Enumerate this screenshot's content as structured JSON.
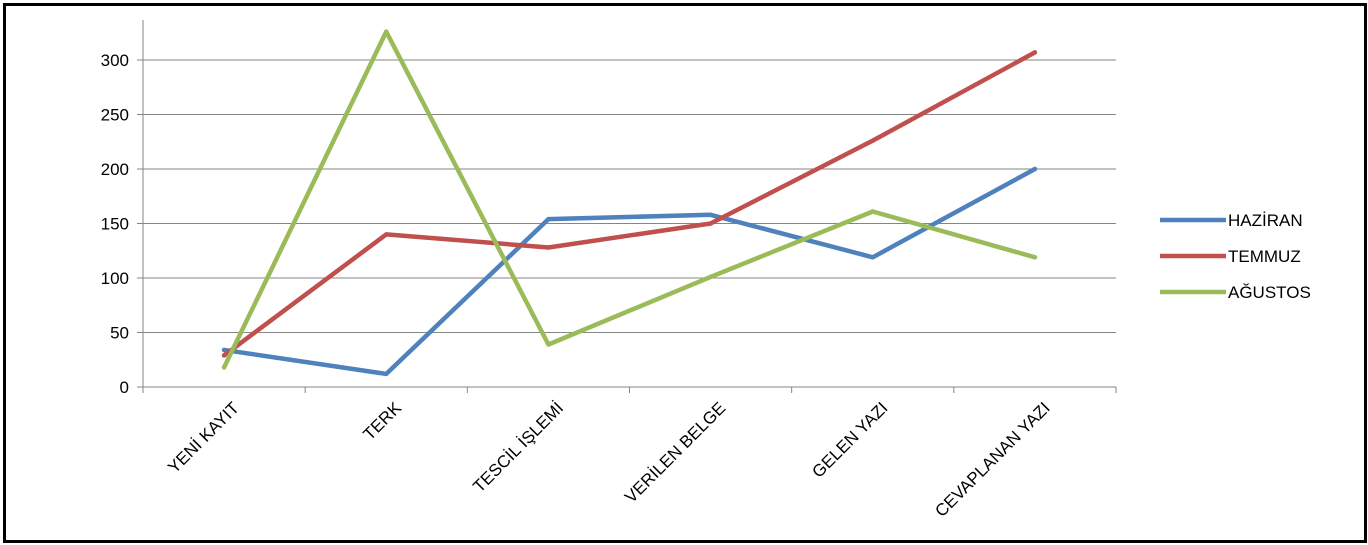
{
  "chart_data": {
    "type": "line",
    "title": "",
    "xlabel": "",
    "ylabel": "",
    "categories": [
      "YENİ KAYIT",
      "TERK",
      "TESCİL İŞLEMİ",
      "VERİLEN BELGE",
      "GELEN YAZI",
      "CEVAPLANAN YAZI"
    ],
    "ylim": [
      0,
      300
    ],
    "yticks": [
      0,
      50,
      100,
      150,
      200,
      250,
      300
    ],
    "grid": true,
    "legend_position": "right",
    "series": [
      {
        "name": "HAZİRAN",
        "color": "#4F81BD",
        "values": [
          34,
          12,
          154,
          158,
          119,
          200
        ]
      },
      {
        "name": "TEMMUZ",
        "color": "#C0504D",
        "values": [
          29,
          140,
          128,
          150,
          226,
          307
        ]
      },
      {
        "name": "AĞUSTOS",
        "color": "#9BBB59",
        "values": [
          18,
          326,
          39,
          101,
          161,
          119
        ]
      }
    ]
  }
}
